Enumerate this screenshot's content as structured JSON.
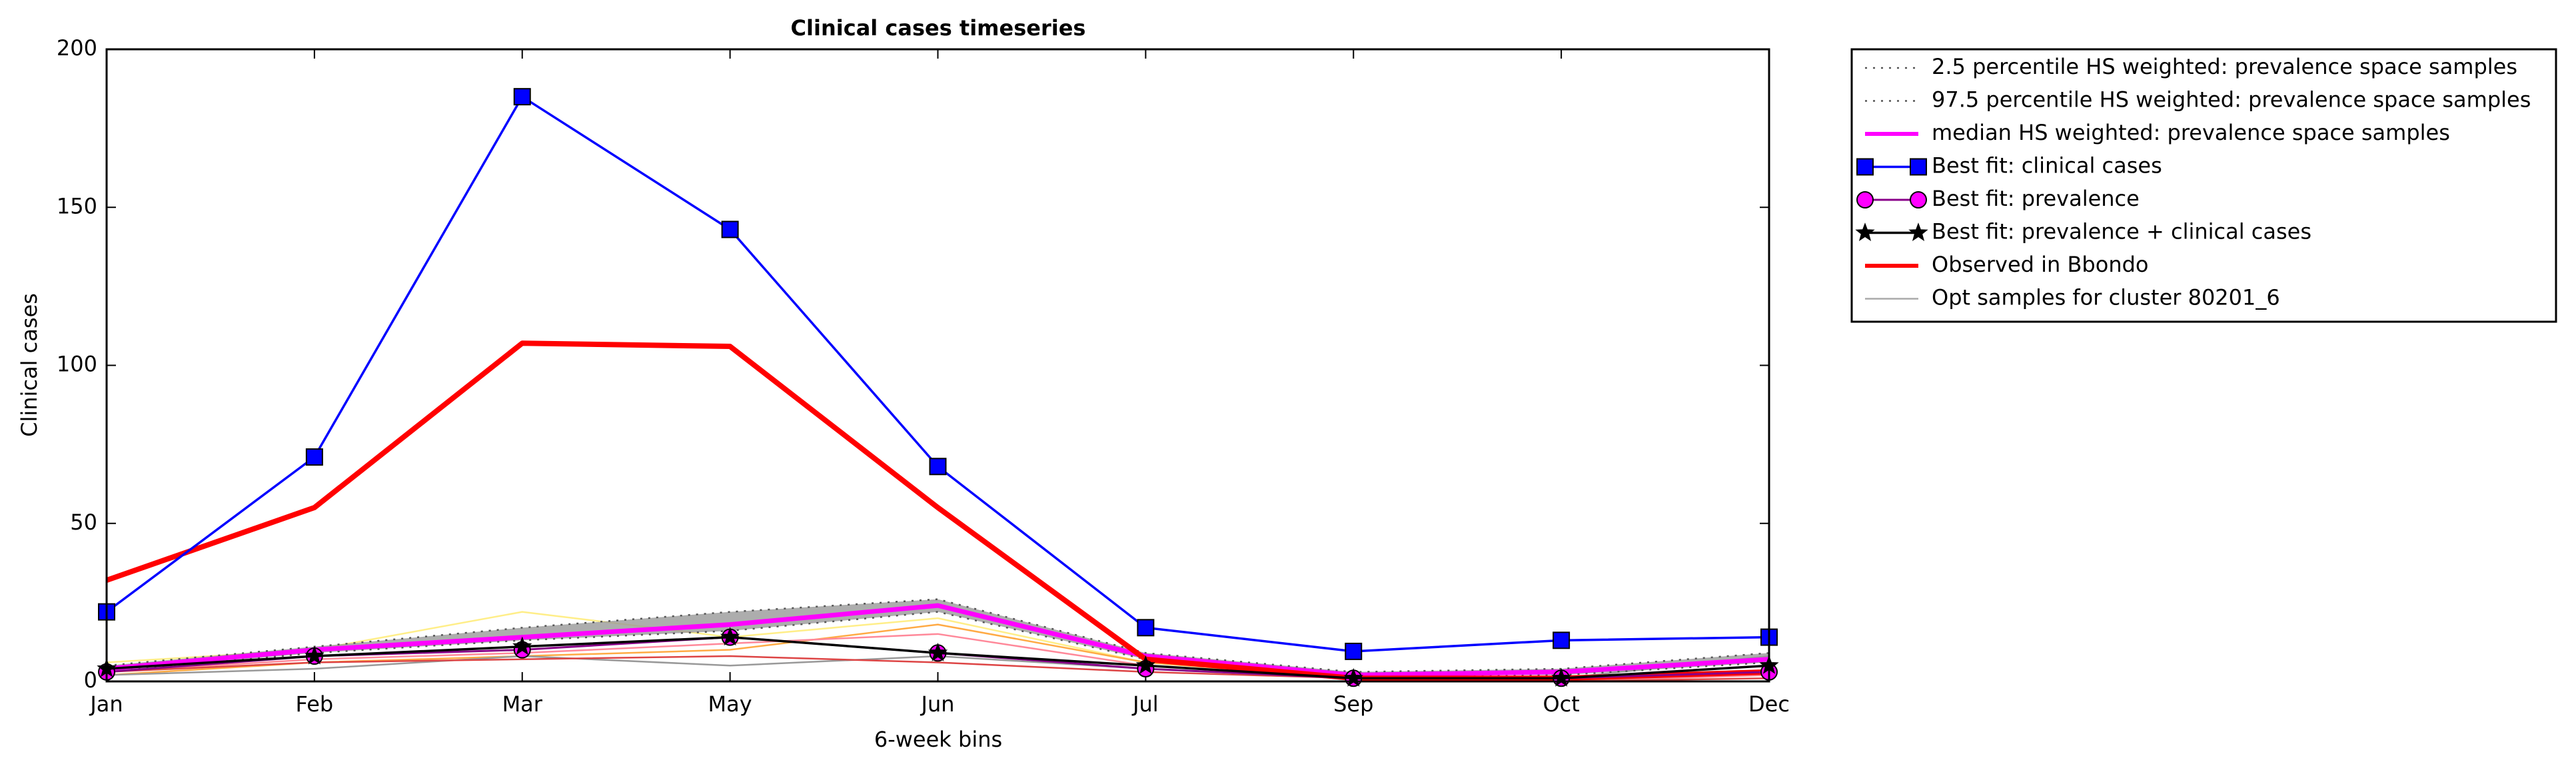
{
  "chart_data": {
    "type": "line",
    "title": "Clinical cases timeseries",
    "xlabel": "6-week bins",
    "ylabel": "Clinical cases",
    "categories": [
      "Jan",
      "Feb",
      "Mar",
      "May",
      "Jun",
      "Jul",
      "Sep",
      "Oct",
      "Dec"
    ],
    "ylim": [
      0,
      200
    ],
    "yticks": [
      0,
      50,
      100,
      150,
      200
    ],
    "legend": "outside-upper-right",
    "series": [
      {
        "name": "2.5 percentile HS weighted: prevalence space samples",
        "color": "#555555",
        "linestyle": "dotted",
        "linewidth": 2.5,
        "values": [
          3,
          9,
          13,
          16,
          22,
          7,
          2,
          2,
          6
        ]
      },
      {
        "name": "97.5 percentile HS weighted: prevalence space samples",
        "color": "#555555",
        "linestyle": "dotted",
        "linewidth": 2.5,
        "values": [
          5,
          11,
          17,
          22,
          26,
          9,
          3,
          4,
          9
        ]
      },
      {
        "name": "median HS weighted: prevalence space samples",
        "color": "#ff00ff",
        "linestyle": "solid",
        "linewidth": 7,
        "values": [
          4,
          10,
          14,
          18,
          24,
          8,
          2,
          3,
          7
        ]
      },
      {
        "name": "Best fit: clinical cases",
        "color": "#0000ff",
        "marker": "square",
        "marker_color": "#0000ff",
        "linestyle": "solid",
        "linewidth": 3.5,
        "values": [
          22,
          71,
          185,
          143,
          68,
          17,
          9.5,
          13,
          14
        ]
      },
      {
        "name": "Best fit: prevalence",
        "color": "#880088",
        "marker": "circle",
        "marker_color": "#ff00ff",
        "linestyle": "solid",
        "linewidth": 3,
        "values": [
          3,
          8,
          10,
          14,
          9,
          4,
          1,
          1,
          3
        ]
      },
      {
        "name": "Best fit: prevalence + clinical cases",
        "color": "#000000",
        "marker": "star",
        "marker_color": "#000000",
        "linestyle": "solid",
        "linewidth": 3.5,
        "values": [
          4,
          8,
          11,
          14,
          9,
          5,
          1,
          1,
          5
        ]
      },
      {
        "name": "Observed in Bbondo",
        "color": "#ff0000",
        "linestyle": "solid",
        "linewidth": 8,
        "values": [
          32,
          55,
          107,
          106,
          55,
          7,
          1,
          1,
          3
        ]
      },
      {
        "name": "Opt samples for cluster 80201_6",
        "color": "#aaaaaa",
        "linestyle": "solid",
        "linewidth": 2.5,
        "lines": [
          {
            "color": "#ffee88",
            "values": [
              6,
              10,
              22,
              14,
              20,
              6,
              1,
              1,
              5
            ]
          },
          {
            "color": "#ffaa44",
            "values": [
              2,
              6,
              8,
              10,
              18,
              6,
              1,
              1,
              2
            ]
          },
          {
            "color": "#ff8899",
            "values": [
              3,
              7,
              9,
              12,
              15,
              5,
              1,
              0,
              2
            ]
          },
          {
            "color": "#999999",
            "values": [
              2,
              4,
              8,
              5,
              8,
              4,
              1,
              1,
              8
            ]
          },
          {
            "color": "#dd4444",
            "values": [
              3,
              6,
              7,
              8,
              6,
              3,
              1,
              0,
              1
            ]
          }
        ]
      }
    ]
  }
}
